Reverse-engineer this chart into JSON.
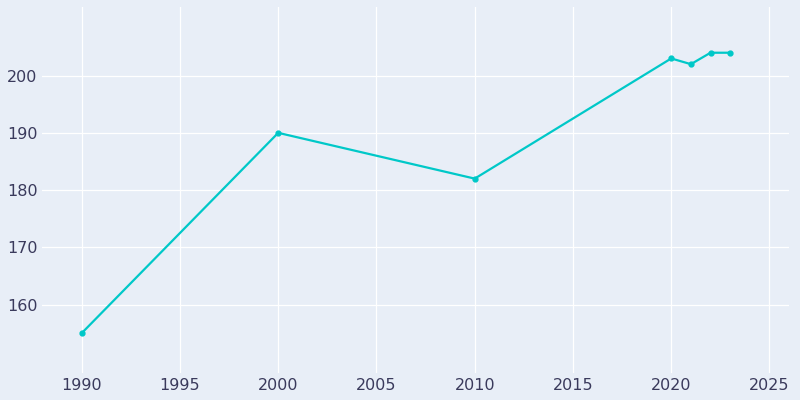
{
  "x": [
    1990,
    2000,
    2010,
    2020,
    2021,
    2022,
    2023
  ],
  "y": [
    155,
    190,
    182,
    203,
    202,
    204,
    204
  ],
  "line_color": "#00C8C8",
  "marker": "o",
  "marker_size": 3.5,
  "line_width": 1.6,
  "background_color": "#E8EEF7",
  "plot_bg_color": "#E8EEF7",
  "grid_color": "#FFFFFF",
  "tick_label_color": "#3A3A5C",
  "xlim": [
    1988,
    2026
  ],
  "ylim": [
    148,
    212
  ],
  "xticks": [
    1990,
    1995,
    2000,
    2005,
    2010,
    2015,
    2020,
    2025
  ],
  "yticks": [
    160,
    170,
    180,
    190,
    200
  ],
  "tick_fontsize": 11.5
}
